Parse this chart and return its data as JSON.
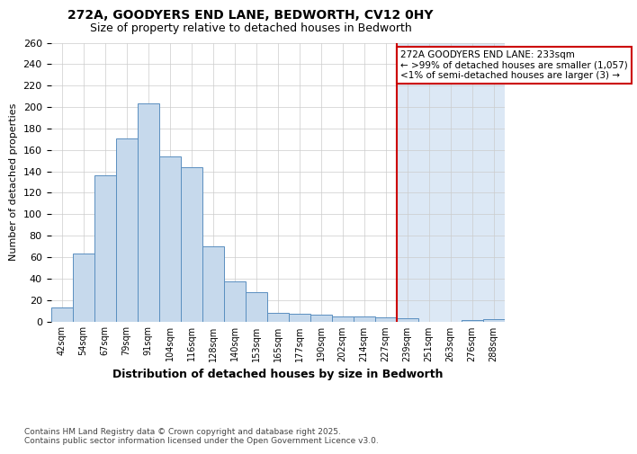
{
  "title_line1": "272A, GOODYERS END LANE, BEDWORTH, CV12 0HY",
  "title_line2": "Size of property relative to detached houses in Bedworth",
  "xlabel": "Distribution of detached houses by size in Bedworth",
  "ylabel": "Number of detached properties",
  "categories": [
    "42sqm",
    "54sqm",
    "67sqm",
    "79sqm",
    "91sqm",
    "104sqm",
    "116sqm",
    "128sqm",
    "140sqm",
    "153sqm",
    "165sqm",
    "177sqm",
    "190sqm",
    "202sqm",
    "214sqm",
    "227sqm",
    "239sqm",
    "251sqm",
    "263sqm",
    "276sqm",
    "288sqm"
  ],
  "values": [
    13,
    63,
    136,
    171,
    203,
    154,
    144,
    70,
    37,
    27,
    8,
    7,
    6,
    5,
    5,
    4,
    3,
    0,
    0,
    1,
    2
  ],
  "bar_color": "#c6d9ec",
  "bar_edge_color": "#5a8fc0",
  "highlight_bg_color": "#dce8f5",
  "vline_color": "#cc0000",
  "vline_x_index": 16,
  "annotation_text": "272A GOODYERS END LANE: 233sqm\n← >99% of detached houses are smaller (1,057)\n<1% of semi-detached houses are larger (3) →",
  "annotation_box_edge_color": "#cc0000",
  "annotation_text_color": "#000000",
  "ylim": [
    0,
    260
  ],
  "yticks": [
    0,
    20,
    40,
    60,
    80,
    100,
    120,
    140,
    160,
    180,
    200,
    220,
    240,
    260
  ],
  "footer_text": "Contains HM Land Registry data © Crown copyright and database right 2025.\nContains public sector information licensed under the Open Government Licence v3.0.",
  "bg_color": "#ffffff",
  "grid_color": "#cccccc"
}
